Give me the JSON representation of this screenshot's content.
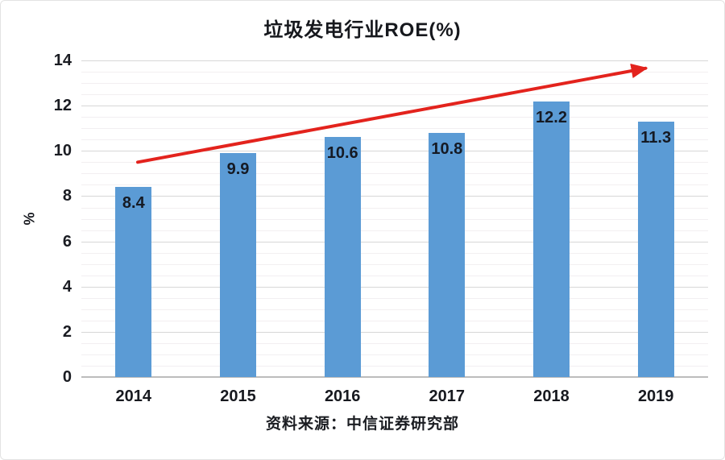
{
  "chart_data": {
    "type": "bar",
    "title": "垃圾发电行业ROE(%)",
    "categories": [
      "2014",
      "2015",
      "2016",
      "2017",
      "2018",
      "2019"
    ],
    "values": [
      8.4,
      9.9,
      10.6,
      10.8,
      12.2,
      11.3
    ],
    "xlabel": "",
    "ylabel": "%",
    "ylim": [
      0,
      14
    ],
    "ytick_step": 2,
    "minor_tick_step": 0.5,
    "grid": true,
    "legend": "none",
    "bar_color": "#5b9bd5",
    "value_label_color": "#151a24",
    "major_gridline_color": "#d7d7d7",
    "minor_gridline_color": "#f2eff1",
    "trend_arrow": {
      "color": "#e3231d",
      "start": {
        "category_index": 0.04,
        "value": 9.5
      },
      "end": {
        "category_index": 4.9,
        "value": 13.65
      }
    },
    "source_note": "资料来源：中信证券研究部"
  }
}
